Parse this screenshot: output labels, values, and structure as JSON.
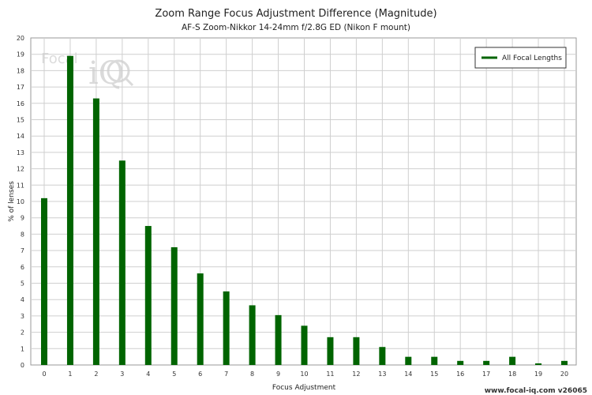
{
  "chart_data": {
    "type": "bar",
    "title": "Zoom Range Focus Adjustment Difference (Magnitude)",
    "subtitle": "AF-S Zoom-Nikkor 14-24mm f/2.8G ED (Nikon F mount)",
    "xlabel": "Focus Adjustment",
    "ylabel": "% of lenses",
    "ylim": [
      0,
      20
    ],
    "yticks": [
      "0",
      "1",
      "2",
      "3",
      "4",
      "5",
      "6",
      "7",
      "8",
      "9",
      "10",
      "11",
      "12",
      "13",
      "14",
      "15",
      "16",
      "17",
      "18",
      "19",
      "20"
    ],
    "categories": [
      "0",
      "1",
      "2",
      "3",
      "4",
      "5",
      "6",
      "7",
      "8",
      "9",
      "10",
      "11",
      "12",
      "13",
      "14",
      "15",
      "16",
      "17",
      "18",
      "19",
      "20"
    ],
    "series": [
      {
        "name": "All Focal Lengths",
        "color": "#006400",
        "values": [
          10.2,
          18.9,
          16.3,
          12.5,
          8.5,
          7.2,
          5.6,
          4.5,
          3.65,
          3.05,
          2.4,
          1.7,
          1.7,
          1.1,
          0.5,
          0.5,
          0.25,
          0.25,
          0.5,
          0.1,
          0.25
        ]
      }
    ],
    "grid": true,
    "legend_position": "top-right"
  },
  "watermark": {
    "text_small": "Focal",
    "text_big": "iQ"
  },
  "footer": {
    "text": "www.focal-iq.com  v26065"
  }
}
